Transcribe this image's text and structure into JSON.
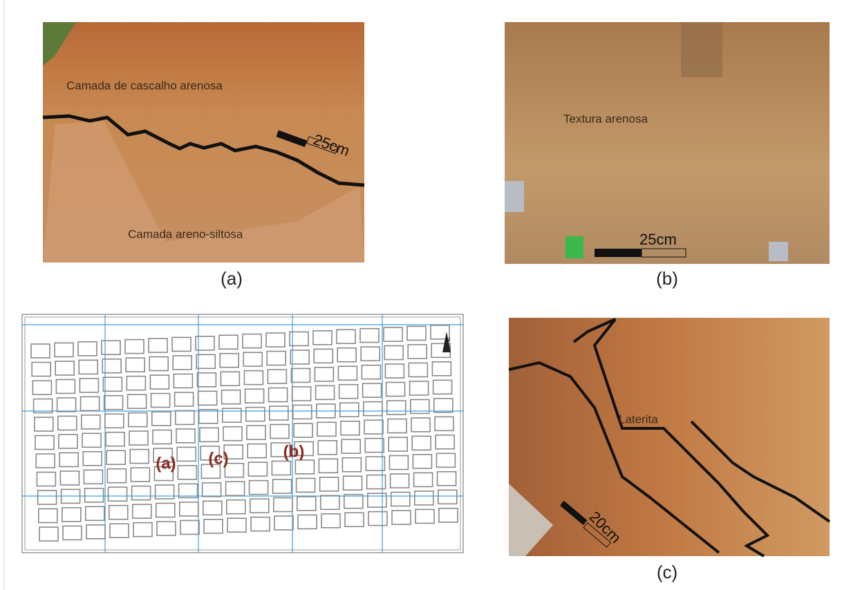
{
  "panels": {
    "a": {
      "labels": [
        "Camada de cascalho arenosa",
        "Camada areno-siltosa"
      ],
      "scale": "25cm",
      "caption": "(a)"
    },
    "b": {
      "labels": [
        "Textura arenosa"
      ],
      "scale": "25cm",
      "caption": "(b)"
    },
    "map": {
      "markers": [
        "(a)",
        "(c)",
        "(b)"
      ],
      "north": "N"
    },
    "c": {
      "labels": [
        "Laterita"
      ],
      "scale": "20cm",
      "caption": "(c)"
    }
  }
}
